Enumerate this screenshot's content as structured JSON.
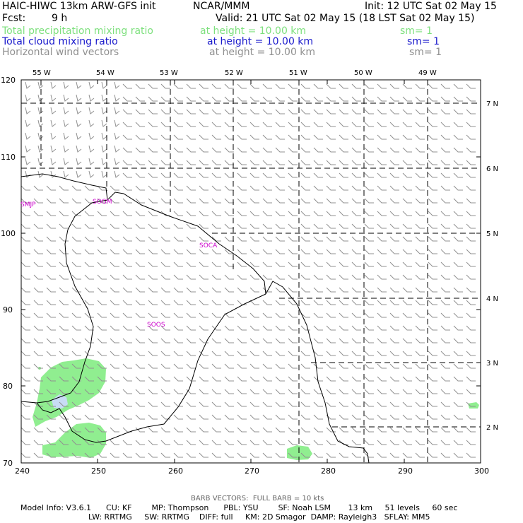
{
  "header": {
    "model_title": "HAIC-HIWC 13km ARW-GFS init",
    "org": "NCAR/MMM",
    "init": "Init: 12 UTC Sat 02 May 15",
    "fcst_label": "Fcst:",
    "fcst_value": "9 h",
    "valid": "Valid: 21 UTC Sat 02 May 15 (18 LST Sat 02 May 15)"
  },
  "fields": [
    {
      "name": "Total precipitation mixing ratio",
      "height": "at height = 10.00 km",
      "sm": "sm= 1",
      "color": "#7ee07e"
    },
    {
      "name": "Total cloud mixing ratio",
      "height": "at height = 10.00 km",
      "sm": "sm= 1",
      "color": "#1a1acc"
    },
    {
      "name": "Horizontal wind vectors",
      "height": "at height = 10.00 km",
      "sm": "sm= 1",
      "color": "#909090"
    }
  ],
  "map": {
    "x_ticks": [
      "240",
      "250",
      "260",
      "270",
      "280",
      "290",
      "300"
    ],
    "y_ticks": [
      "70",
      "80",
      "90",
      "100",
      "110",
      "120"
    ],
    "lon_labels": [
      "55 W",
      "54 W",
      "53 W",
      "52 W",
      "51 W",
      "50 W",
      "49 W"
    ],
    "lat_labels": [
      "7 N",
      "6 N",
      "5 N",
      "4 N",
      "3 N",
      "2 N"
    ],
    "stations": [
      "SMJP",
      "SOGM",
      "SOCA",
      "SOOS"
    ],
    "colors": {
      "precip": "#90ee90",
      "cloud": "#c8dcf5",
      "barb": "#909090",
      "coast": "#000000",
      "station": "#cc00cc"
    }
  },
  "footer": {
    "barb_note": "BARB VECTORS:  FULL BARB = 10 kts",
    "line1": "Model Info: V3.6.1      CU: KF        MP: Thompson      PBL: YSU        SF: Noah LSM       13 km     51 levels     60 sec",
    "line2": "LW: RRTMG     SW: RRTMG    DIFF: full     KM: 2D Smagor  DAMP: Rayleigh3   SFLAY: MM5"
  }
}
